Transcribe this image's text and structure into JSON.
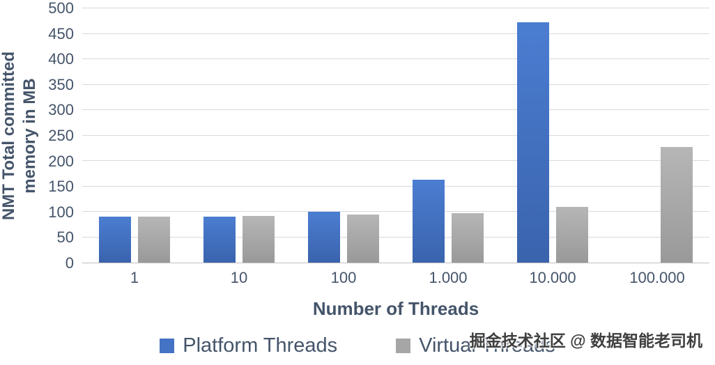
{
  "chart_data": {
    "type": "bar",
    "title": "",
    "categories": [
      "1",
      "10",
      "100",
      "1.000",
      "10.000",
      "100.000"
    ],
    "series": [
      {
        "name": "Platform Threads",
        "color": "#4472C4",
        "color_top": "#4b7dd1",
        "color_bottom": "#3a63ad",
        "values": [
          90,
          90,
          100,
          163,
          472,
          0
        ]
      },
      {
        "name": "Virtual Threads",
        "color": "#A6A6A6",
        "color_top": "#b6b6b6",
        "color_bottom": "#999999",
        "values": [
          90,
          92,
          95,
          97,
          110,
          227
        ]
      }
    ],
    "ylabel_line1": "NMT Total committed",
    "ylabel_line2": "memory in MB",
    "xlabel": "Number of Threads",
    "ylim": [
      0,
      500
    ],
    "ytick_step": 50,
    "grid": true,
    "legend_position": "bottom"
  },
  "watermark": "掘金技术社区 @ 数据智能老司机"
}
